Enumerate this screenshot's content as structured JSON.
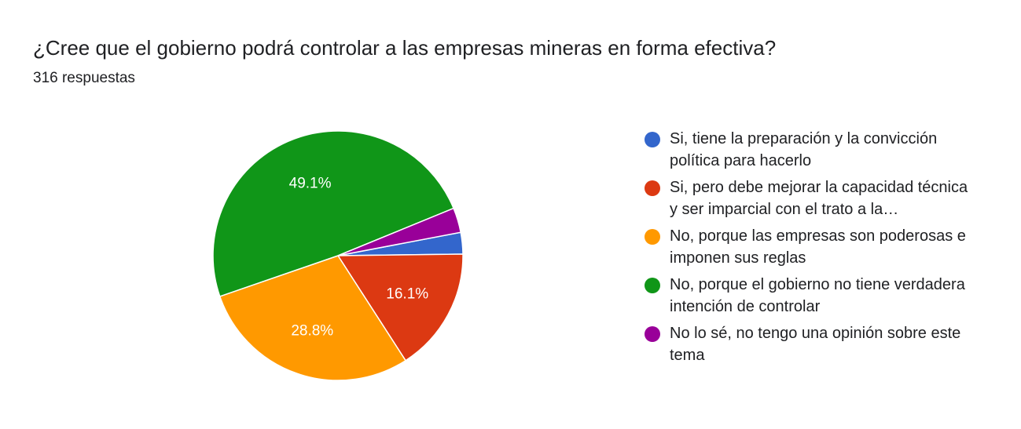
{
  "header": {
    "title": "¿Cree que el gobierno podrá controlar a las empresas mineras en forma efectiva?",
    "responses": "316 respuestas"
  },
  "chart_data": {
    "type": "pie",
    "title": "¿Cree que el gobierno podrá controlar a las empresas mineras en forma efectiva?",
    "legend_position": "right",
    "slices": [
      {
        "label": "Si, tiene la preparación y la convicción política para hacerlo",
        "value": 2.8,
        "display": "",
        "color": "#3366cc"
      },
      {
        "label": "Si, pero debe mejorar la capacidad técnica y ser imparcial con el trato a la…",
        "value": 16.1,
        "display": "16.1%",
        "color": "#dc3912"
      },
      {
        "label": "No, porque las empresas son poderosas e imponen sus reglas",
        "value": 28.8,
        "display": "28.8%",
        "color": "#ff9900"
      },
      {
        "label": "No, porque el gobierno no tiene verdadera intención de controlar",
        "value": 49.1,
        "display": "49.1%",
        "color": "#109618"
      },
      {
        "label": "No lo sé, no tengo una opinión sobre este tema",
        "value": 3.2,
        "display": "",
        "color": "#990099"
      }
    ]
  }
}
